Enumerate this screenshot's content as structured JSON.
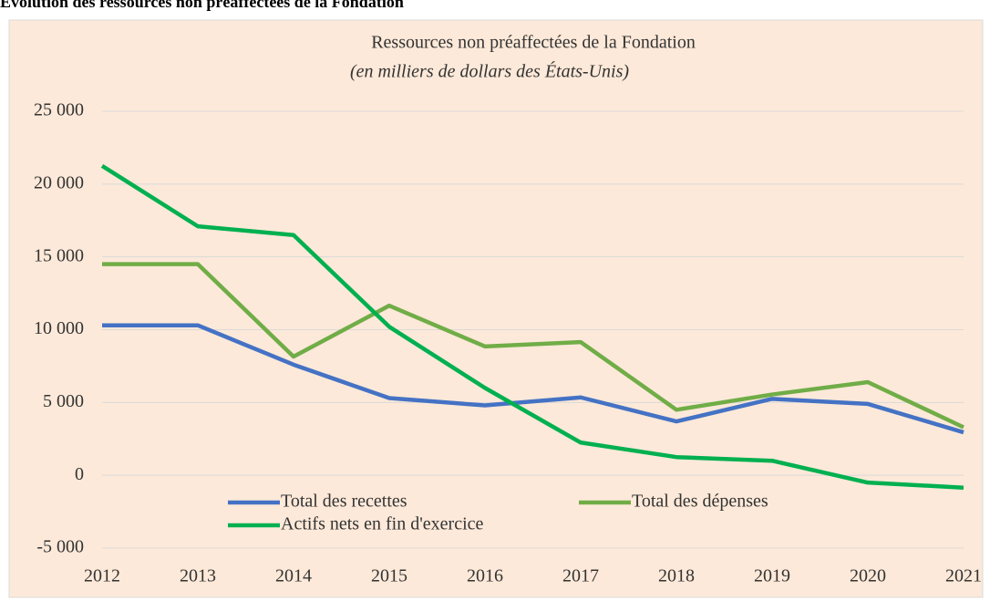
{
  "heading": "Évolution des ressources non préaffectées de la Fondation",
  "chart_data": {
    "type": "line",
    "title": "Ressources non préaffectées de la Fondation",
    "subtitle": "(en milliers de dollars des États-Unis)",
    "categories": [
      "2012",
      "2013",
      "2014",
      "2015",
      "2016",
      "2017",
      "2018",
      "2019",
      "2020",
      "2021"
    ],
    "series": [
      {
        "name": "Total des recettes",
        "color": "#4472c4",
        "values": [
          10300,
          10300,
          7600,
          5300,
          4800,
          5350,
          3700,
          5250,
          4900,
          2950
        ]
      },
      {
        "name": "Total des dépenses",
        "color": "#70ad47",
        "values": [
          14500,
          14500,
          8150,
          11650,
          8850,
          9150,
          4500,
          5550,
          6400,
          3300
        ]
      },
      {
        "name": "Actifs nets en fin d'exercice",
        "color": "#00b050",
        "values": [
          21250,
          17100,
          16500,
          10200,
          6000,
          2250,
          1250,
          1000,
          -500,
          -850
        ]
      }
    ],
    "ylim": [
      -5000,
      25000
    ],
    "yticks": [
      {
        "value": -5000,
        "label": "-5 000"
      },
      0,
      {
        "value": 5000,
        "label": "5 000"
      },
      {
        "value": 10000,
        "label": "10 000"
      },
      {
        "value": 15000,
        "label": "15 000"
      },
      {
        "value": 20000,
        "label": "20 000"
      },
      {
        "value": 25000,
        "label": "25 000"
      }
    ],
    "grid": true,
    "legend": "bottom"
  }
}
